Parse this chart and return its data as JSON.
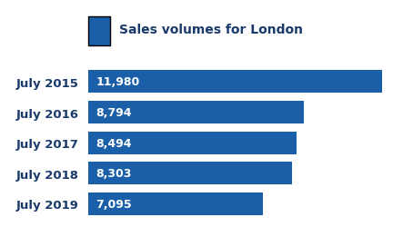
{
  "categories": [
    "July 2015",
    "July 2016",
    "July 2017",
    "July 2018",
    "July 2019"
  ],
  "values": [
    11980,
    8794,
    8494,
    8303,
    7095
  ],
  "labels": [
    "11,980",
    "8,794",
    "8,494",
    "8,303",
    "7,095"
  ],
  "bar_color": "#1a5fa8",
  "label_color": "#ffffff",
  "legend_label": "Sales volumes for London",
  "legend_text_color": "#1a3a6b",
  "background_color": "#ffffff",
  "xlim": [
    0,
    12500
  ],
  "bar_height": 0.75,
  "label_fontsize": 9,
  "legend_fontsize": 10,
  "ytick_fontsize": 9.5,
  "ytick_color": "#1a3a6b",
  "separator_color": "#1a5fa8",
  "separator_linewidth": 1.5
}
